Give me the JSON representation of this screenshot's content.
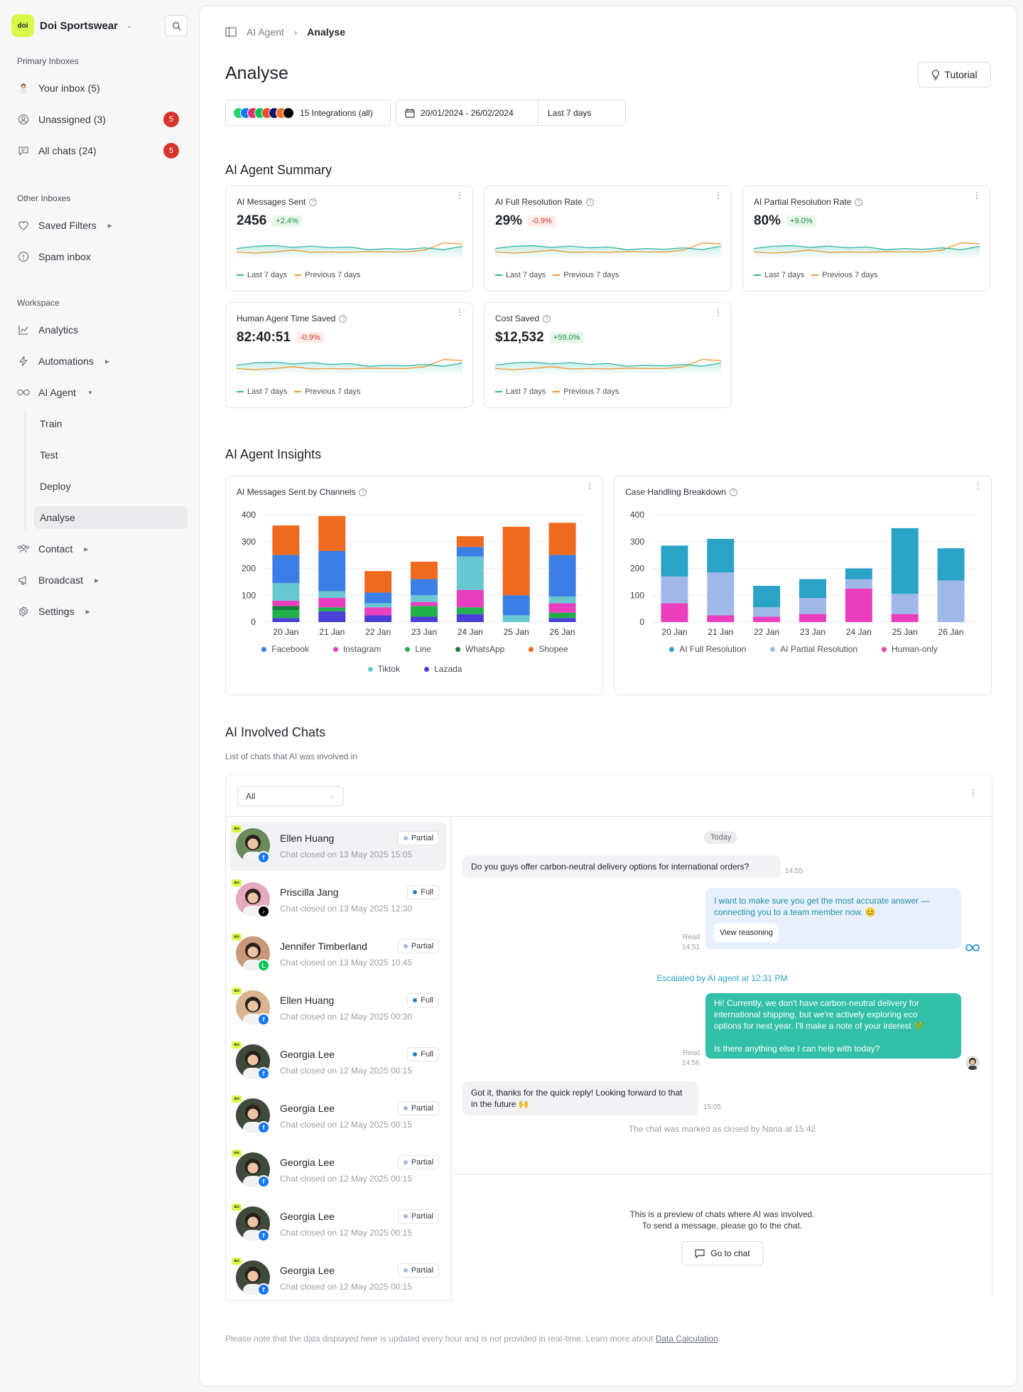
{
  "sidebar": {
    "brand": {
      "logo_text": "doi",
      "name": "Doi Sportswear"
    },
    "sections": {
      "primary": "Primary Inboxes",
      "other": "Other Inboxes",
      "workspace": "Workspace"
    },
    "primary": [
      {
        "label": "Your inbox (5)",
        "icon": "user-avatar-icon"
      },
      {
        "label": "Unassigned (3)",
        "icon": "person-circle-icon",
        "badge": "5"
      },
      {
        "label": "All chats (24)",
        "icon": "chat-icon",
        "badge": "5"
      }
    ],
    "other": [
      {
        "label": "Saved Filters",
        "icon": "heart-icon"
      },
      {
        "label": "Spam inbox",
        "icon": "alert-icon"
      }
    ],
    "workspace": [
      {
        "label": "Analytics",
        "icon": "chart-line-icon"
      },
      {
        "label": "Automations",
        "icon": "bolt-icon"
      },
      {
        "label": "AI Agent",
        "icon": "infinity-icon"
      }
    ],
    "ai_agent_sub": [
      "Train",
      "Test",
      "Deploy",
      "Analyse"
    ],
    "workspace_more": [
      {
        "label": "Contact",
        "icon": "contacts-icon"
      },
      {
        "label": "Broadcast",
        "icon": "megaphone-icon"
      },
      {
        "label": "Settings",
        "icon": "gear-icon"
      }
    ]
  },
  "header": {
    "breadcrumb_parent": "AI Agent",
    "breadcrumb_current": "Analyse",
    "title": "Analyse",
    "tutorial_label": "Tutorial"
  },
  "filters": {
    "integrations_label": "15 Integrations (all)",
    "integration_colors": [
      "#25d366",
      "#1877f2",
      "#e1306c",
      "#06c755",
      "#ee4d2d",
      "#0f146d",
      "#f57224",
      "#000000"
    ],
    "date_range": "20/01/2024 - 26/02/2024",
    "period": "Last 7 days"
  },
  "summary": {
    "title": "AI Agent Summary",
    "legend_current": "Last 7 days",
    "legend_previous": "Previous 7 days",
    "colors": {
      "current": "#2bb5a0",
      "previous": "#f0962b"
    },
    "cards": [
      {
        "title": "AI Messages Sent",
        "value": "2456",
        "change": "+2.4%",
        "trend": "up"
      },
      {
        "title": "AI Full Resolution Rate",
        "value": "29%",
        "change": "-0.9%",
        "trend": "down"
      },
      {
        "title": "AI Partial Resolution Rate",
        "value": "80%",
        "change": "+9.0%",
        "trend": "up"
      },
      {
        "title": "Human Agent Time Saved",
        "value": "82:40:51",
        "change": "-0.9%",
        "trend": "down"
      },
      {
        "title": "Cost Saved",
        "value": "$12,532",
        "change": "+59.0%",
        "trend": "up"
      }
    ]
  },
  "insights": {
    "title": "AI Agent Insights",
    "channels_title": "AI Messages Sent by Channels",
    "case_title": "Case Handling Breakdown"
  },
  "chart_data": [
    {
      "type": "bar",
      "title": "AI Messages Sent by Channels",
      "stacked": true,
      "categories": [
        "20 Jan",
        "21 Jan",
        "22 Jan",
        "23 Jan",
        "24 Jan",
        "25 Jan",
        "26 Jan"
      ],
      "ylim": [
        0,
        400
      ],
      "yticks": [
        0,
        100,
        200,
        300,
        400
      ],
      "grid": true,
      "legend_position": "bottom",
      "series": [
        {
          "name": "Lazada",
          "color": "#4a3fd6",
          "values": [
            15,
            40,
            25,
            20,
            30,
            0,
            15
          ]
        },
        {
          "name": "Line",
          "color": "#22b04b",
          "values": [
            30,
            15,
            0,
            40,
            25,
            0,
            20
          ]
        },
        {
          "name": "WhatsApp",
          "color": "#157f3b",
          "values": [
            15,
            0,
            0,
            0,
            0,
            0,
            0
          ]
        },
        {
          "name": "Instagram",
          "color": "#e83fc1",
          "values": [
            20,
            35,
            30,
            15,
            65,
            0,
            35
          ]
        },
        {
          "name": "Tiktok",
          "color": "#67c8d2",
          "values": [
            65,
            25,
            15,
            25,
            125,
            25,
            25
          ]
        },
        {
          "name": "Facebook",
          "color": "#3b7fe6",
          "values": [
            105,
            150,
            40,
            60,
            35,
            75,
            155
          ]
        },
        {
          "name": "Shopee",
          "color": "#ee6a1f",
          "values": [
            110,
            130,
            80,
            65,
            40,
            255,
            120
          ]
        }
      ],
      "legend_order": [
        "Facebook",
        "Instagram",
        "Line",
        "WhatsApp",
        "Shopee",
        "Tiktok",
        "Lazada"
      ]
    },
    {
      "type": "bar",
      "title": "Case Handling Breakdown",
      "stacked": true,
      "categories": [
        "20 Jan",
        "21 Jan",
        "22 Jan",
        "23 Jan",
        "24 Jan",
        "25 Jan",
        "26 Jan"
      ],
      "ylim": [
        0,
        400
      ],
      "yticks": [
        0,
        100,
        200,
        300,
        400
      ],
      "grid": true,
      "legend_position": "bottom",
      "series": [
        {
          "name": "Human-only",
          "color": "#ea3fbd",
          "values": [
            70,
            25,
            20,
            30,
            125,
            30,
            0
          ]
        },
        {
          "name": "AI Partial Resolution",
          "color": "#9fb8e8",
          "values": [
            100,
            160,
            35,
            60,
            35,
            75,
            155
          ]
        },
        {
          "name": "AI Full Resolution",
          "color": "#2aa3c7",
          "values": [
            115,
            125,
            80,
            70,
            40,
            245,
            120
          ]
        }
      ],
      "legend_order": [
        "AI Full Resolution",
        "AI Partial Resolution",
        "Human-only"
      ]
    }
  ],
  "involved": {
    "title": "AI Involved Chats",
    "subtitle": "List of chats that AI was involved in",
    "filter_value": "All",
    "chats": [
      {
        "name": "Ellen Huang",
        "status": "Partial",
        "date": "Chat closed on 13 May 2025 15:05",
        "channel": "facebook",
        "active": true
      },
      {
        "name": "Priscilla Jang",
        "status": "Full",
        "date": "Chat closed on 13 May 2025 12:30",
        "channel": "tiktok"
      },
      {
        "name": "Jennifer Timberland",
        "status": "Partial",
        "date": "Chat closed on 13 May 2025 10:45",
        "channel": "line"
      },
      {
        "name": "Ellen Huang",
        "status": "Full",
        "date": "Chat closed on 12 May 2025 00:30",
        "channel": "facebook"
      },
      {
        "name": "Georgia Lee",
        "status": "Full",
        "date": "Chat closed on 12 May 2025 00:15",
        "channel": "facebook"
      },
      {
        "name": "Georgia Lee",
        "status": "Partial",
        "date": "Chat closed on 12 May 2025 00:15",
        "channel": "facebook"
      },
      {
        "name": "Georgia Lee",
        "status": "Partial",
        "date": "Chat closed on 12 May 2025 00:15",
        "channel": "facebook"
      },
      {
        "name": "Georgia Lee",
        "status": "Partial",
        "date": "Chat closed on 12 May 2025 00:15",
        "channel": "facebook"
      },
      {
        "name": "Georgia Lee",
        "status": "Partial",
        "date": "Chat closed on 12 May 2025 00:15",
        "channel": "facebook"
      }
    ],
    "status_colors": {
      "Partial": "#9fb8e8",
      "Full": "#2a7fc7"
    },
    "conversation": {
      "day": "Today",
      "m1": "Do you guys offer carbon-neutral delivery options for international orders?",
      "m1_time": "14:55",
      "m2": "I want to make sure you get the most accurate answer — connecting you to a team member now. 😊",
      "m2_button": "View reasoning",
      "m2_status": "Read",
      "m2_time": "14:51",
      "escalation": "Escalated by AI agent at 12:31 PM",
      "m3a": "Hi! Currently, we don't have carbon-neutral delivery for international shipping, but we're actively exploring eco options for next year. I'll make a note of your interest 💚",
      "m3b": "Is there anything else I can help with today?",
      "m3_status": "Read",
      "m3_time": "14:56",
      "m4": "Got it, thanks for the quick reply! Looking forward to that in the future 🙌",
      "m4_time": "15:05",
      "closed_note": "The chat was marked as closed by Nana at 15:42"
    },
    "preview_line1": "This is a preview of chats where AI was involved.",
    "preview_line2": "To send a message, please go to the chat.",
    "goto_label": "Go to chat"
  },
  "footnote": {
    "text": "Please note that the data displayed here is updated every hour and is not provided in real-time. Learn more about ",
    "link": "Data Calculation",
    "end": "."
  }
}
